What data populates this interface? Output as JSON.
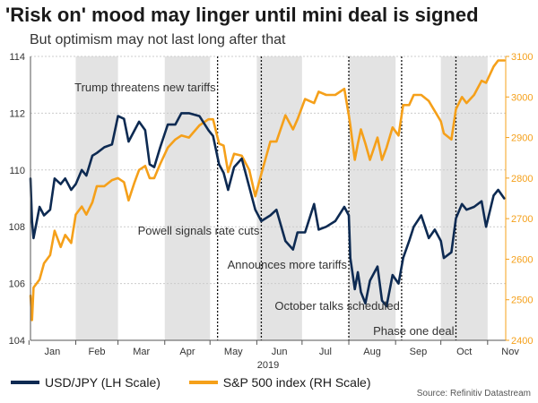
{
  "title": "'Risk on' mood may linger until mini deal is signed",
  "subtitle": "But optimism may not last long after that",
  "source": "Source: Refinitiv Datastream",
  "colors": {
    "usdjpy": "#0d2a52",
    "sp500": "#f5a01a",
    "band": "#e3e3e3",
    "grid": "#cccccc",
    "left_axis_text": "#333333",
    "right_axis_text": "#f5a01a"
  },
  "chart_data": {
    "type": "line",
    "xlabel": "2019",
    "x_tick_labels": [
      "Jan",
      "Feb",
      "Mar",
      "Apr",
      "May",
      "Jun",
      "Jul",
      "Aug",
      "Sep",
      "Oct",
      "Nov"
    ],
    "xlim": [
      "2019-01-02",
      "2019-11-13"
    ],
    "y_left": {
      "label": "LH Scale",
      "ylim": [
        104,
        114
      ],
      "ticks": [
        104,
        106,
        108,
        110,
        112,
        114
      ]
    },
    "y_right": {
      "label": "RH Scale",
      "ylim": [
        2400,
        3100
      ],
      "ticks": [
        2400,
        2500,
        2600,
        2700,
        2800,
        2900,
        3000,
        3100
      ]
    },
    "grid": true,
    "legend_position": "bottom",
    "shaded_months": [
      "Feb",
      "Apr",
      "Jun",
      "Aug",
      "Oct"
    ],
    "series": [
      {
        "name": "USD/JPY (LH Scale)",
        "axis": "left",
        "x": [
          "2019-01-02",
          "2019-01-03",
          "2019-01-04",
          "2019-01-08",
          "2019-01-11",
          "2019-01-15",
          "2019-01-18",
          "2019-01-22",
          "2019-01-25",
          "2019-01-29",
          "2019-02-01",
          "2019-02-05",
          "2019-02-08",
          "2019-02-12",
          "2019-02-15",
          "2019-02-20",
          "2019-02-25",
          "2019-03-01",
          "2019-03-05",
          "2019-03-08",
          "2019-03-12",
          "2019-03-15",
          "2019-03-19",
          "2019-03-22",
          "2019-03-25",
          "2019-03-29",
          "2019-04-03",
          "2019-04-08",
          "2019-04-12",
          "2019-04-17",
          "2019-04-24",
          "2019-04-30",
          "2019-05-03",
          "2019-05-07",
          "2019-05-10",
          "2019-05-13",
          "2019-05-17",
          "2019-05-22",
          "2019-05-27",
          "2019-05-31",
          "2019-06-04",
          "2019-06-10",
          "2019-06-14",
          "2019-06-20",
          "2019-06-25",
          "2019-06-28",
          "2019-07-03",
          "2019-07-09",
          "2019-07-12",
          "2019-07-17",
          "2019-07-23",
          "2019-07-29",
          "2019-08-01",
          "2019-08-02",
          "2019-08-05",
          "2019-08-07",
          "2019-08-09",
          "2019-08-12",
          "2019-08-15",
          "2019-08-20",
          "2019-08-23",
          "2019-08-26",
          "2019-08-30",
          "2019-09-03",
          "2019-09-06",
          "2019-09-10",
          "2019-09-13",
          "2019-09-18",
          "2019-09-23",
          "2019-09-27",
          "2019-10-01",
          "2019-10-03",
          "2019-10-08",
          "2019-10-11",
          "2019-10-15",
          "2019-10-18",
          "2019-10-23",
          "2019-10-28",
          "2019-10-31",
          "2019-11-05",
          "2019-11-08",
          "2019-11-12"
        ],
        "values": [
          109.7,
          108.2,
          107.6,
          108.7,
          108.4,
          108.6,
          109.7,
          109.5,
          109.7,
          109.3,
          109.5,
          110.0,
          109.8,
          110.5,
          110.6,
          110.8,
          110.9,
          111.9,
          111.8,
          111.0,
          111.4,
          111.7,
          111.4,
          110.2,
          110.1,
          110.8,
          111.6,
          111.6,
          112.0,
          112.0,
          111.9,
          111.4,
          111.2,
          110.2,
          109.9,
          109.3,
          110.1,
          110.4,
          109.4,
          108.6,
          108.2,
          108.4,
          108.6,
          107.5,
          107.2,
          107.8,
          107.8,
          108.8,
          107.9,
          108.0,
          108.2,
          108.7,
          108.4,
          106.9,
          105.8,
          106.4,
          105.7,
          105.3,
          106.1,
          106.6,
          105.4,
          105.2,
          106.3,
          106.0,
          106.9,
          107.5,
          108.0,
          108.4,
          107.6,
          107.9,
          107.5,
          106.9,
          107.1,
          108.3,
          108.8,
          108.6,
          108.7,
          108.9,
          108.0,
          109.1,
          109.3,
          109.0
        ]
      },
      {
        "name": "S&P 500 index (RH Scale)",
        "axis": "right",
        "x": [
          "2019-01-02",
          "2019-01-03",
          "2019-01-04",
          "2019-01-08",
          "2019-01-11",
          "2019-01-15",
          "2019-01-18",
          "2019-01-22",
          "2019-01-25",
          "2019-01-29",
          "2019-02-01",
          "2019-02-05",
          "2019-02-08",
          "2019-02-12",
          "2019-02-15",
          "2019-02-20",
          "2019-02-25",
          "2019-03-01",
          "2019-03-05",
          "2019-03-08",
          "2019-03-12",
          "2019-03-15",
          "2019-03-19",
          "2019-03-22",
          "2019-03-25",
          "2019-03-29",
          "2019-04-03",
          "2019-04-08",
          "2019-04-12",
          "2019-04-17",
          "2019-04-24",
          "2019-04-30",
          "2019-05-03",
          "2019-05-07",
          "2019-05-10",
          "2019-05-13",
          "2019-05-17",
          "2019-05-22",
          "2019-05-27",
          "2019-05-31",
          "2019-06-04",
          "2019-06-10",
          "2019-06-14",
          "2019-06-20",
          "2019-06-25",
          "2019-06-28",
          "2019-07-03",
          "2019-07-09",
          "2019-07-12",
          "2019-07-17",
          "2019-07-23",
          "2019-07-29",
          "2019-08-01",
          "2019-08-02",
          "2019-08-05",
          "2019-08-07",
          "2019-08-09",
          "2019-08-12",
          "2019-08-15",
          "2019-08-20",
          "2019-08-23",
          "2019-08-26",
          "2019-08-30",
          "2019-09-03",
          "2019-09-06",
          "2019-09-10",
          "2019-09-13",
          "2019-09-18",
          "2019-09-23",
          "2019-09-27",
          "2019-10-01",
          "2019-10-03",
          "2019-10-08",
          "2019-10-11",
          "2019-10-15",
          "2019-10-18",
          "2019-10-23",
          "2019-10-28",
          "2019-10-31",
          "2019-11-05",
          "2019-11-08",
          "2019-11-12"
        ],
        "values": [
          2510,
          2450,
          2530,
          2550,
          2590,
          2610,
          2670,
          2630,
          2660,
          2640,
          2710,
          2730,
          2710,
          2740,
          2780,
          2780,
          2795,
          2800,
          2790,
          2745,
          2790,
          2820,
          2830,
          2800,
          2800,
          2835,
          2875,
          2895,
          2905,
          2900,
          2930,
          2945,
          2945,
          2885,
          2880,
          2815,
          2860,
          2855,
          2820,
          2755,
          2810,
          2890,
          2890,
          2955,
          2920,
          2945,
          2995,
          2985,
          3013,
          3005,
          3005,
          3020,
          2955,
          2930,
          2845,
          2885,
          2920,
          2885,
          2845,
          2900,
          2845,
          2875,
          2925,
          2905,
          2980,
          2980,
          3005,
          3005,
          2990,
          2965,
          2940,
          2910,
          2895,
          2970,
          3000,
          2985,
          3005,
          3040,
          3035,
          3075,
          3090,
          3090
        ]
      }
    ],
    "annotations": [
      {
        "text": "Trump threatens new tariffs",
        "date": "2019-05-06"
      },
      {
        "text": "Powell signals rate cuts",
        "date": "2019-06-04"
      },
      {
        "text": "Announces more tariffs",
        "date": "2019-08-01"
      },
      {
        "text": "October talks scheduled",
        "date": "2019-09-05"
      },
      {
        "text": "Phase one deal",
        "date": "2019-10-11"
      }
    ]
  }
}
